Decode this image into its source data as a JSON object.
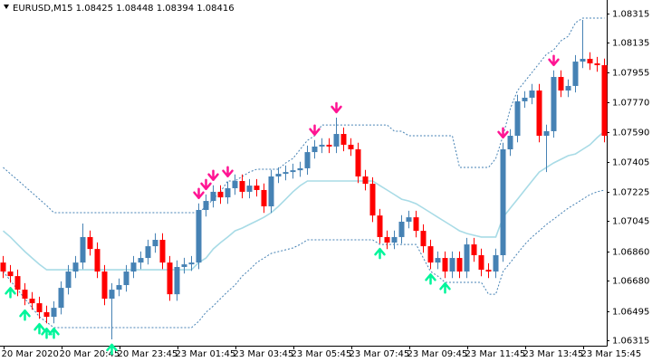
{
  "chart_data": {
    "type": "candlestick",
    "title": "EURUSD,M15  1.08425 1.08448 1.08394 1.08416",
    "categories": [
      "20 Mar 2020",
      null,
      null,
      null,
      null,
      null,
      null,
      null,
      "20 Mar 20:45",
      null,
      null,
      null,
      null,
      null,
      null,
      null,
      "20 Mar 23:45",
      null,
      null,
      null,
      null,
      null,
      null,
      null,
      "23 Mar 01:45",
      null,
      null,
      null,
      null,
      null,
      null,
      null,
      "23 Mar 03:45",
      null,
      null,
      null,
      null,
      null,
      null,
      null,
      "23 Mar 05:45",
      null,
      null,
      null,
      null,
      null,
      null,
      null,
      "23 Mar 07:45",
      null,
      null,
      null,
      null,
      null,
      null,
      null,
      "23 Mar 09:45",
      null,
      null,
      null,
      null,
      null,
      null,
      null,
      "23 Mar 11:45",
      null,
      null,
      null,
      null,
      null,
      null,
      null,
      "23 Mar 13:45",
      null,
      null,
      null,
      null,
      null,
      null,
      null,
      "23 Mar 15:45",
      null,
      null,
      null
    ],
    "open": [
      1.06791,
      1.06736,
      1.06708,
      1.06625,
      1.0657,
      1.06542,
      1.06487,
      1.06459,
      1.06514,
      1.06636,
      1.06736,
      1.06791,
      1.06947,
      1.06874,
      1.06736,
      1.0657,
      1.06625,
      1.06653,
      1.06736,
      1.06791,
      1.06819,
      1.06891,
      1.0693,
      1.06791,
      1.06597,
      1.06764,
      1.0678,
      1.06791,
      1.07113,
      1.07168,
      1.07224,
      1.0719,
      1.07246,
      1.0729,
      1.07224,
      1.07262,
      1.07235,
      1.07135,
      1.07318,
      1.07334,
      1.07345,
      1.07356,
      1.07368,
      1.07467,
      1.07501,
      1.07512,
      1.07501,
      1.07578,
      1.07512,
      1.07484,
      1.07318,
      1.07273,
      1.07079,
      1.06947,
      1.06913,
      1.06947,
      1.07041,
      1.07068,
      1.06985,
      1.06891,
      1.06791,
      1.06819,
      1.06736,
      1.06819,
      1.06736,
      1.06902,
      1.06836,
      1.06747,
      1.06736,
      1.06836,
      1.07484,
      1.07567,
      1.07778,
      1.078,
      1.07844,
      1.07567,
      1.07595,
      1.07927,
      1.07844,
      1.07872,
      1.08021,
      1.08038,
      1.0801,
      1.07999
    ],
    "high": [
      1.06831,
      1.06776,
      1.06748,
      1.06665,
      1.0661,
      1.06582,
      1.06527,
      1.06554,
      1.06676,
      1.06776,
      1.06831,
      1.0703,
      1.06987,
      1.06914,
      1.06776,
      1.06665,
      1.06693,
      1.06776,
      1.06831,
      1.06859,
      1.06931,
      1.0697,
      1.0697,
      1.06831,
      1.06804,
      1.0682,
      1.06831,
      1.07153,
      1.07208,
      1.07264,
      1.07264,
      1.07286,
      1.0733,
      1.0733,
      1.07302,
      1.07302,
      1.07275,
      1.07358,
      1.07374,
      1.07385,
      1.07396,
      1.07408,
      1.07507,
      1.07541,
      1.07552,
      1.07552,
      1.07678,
      1.07618,
      1.07552,
      1.07524,
      1.07358,
      1.07313,
      1.07119,
      1.06987,
      1.06987,
      1.07081,
      1.07108,
      1.07108,
      1.07025,
      1.06931,
      1.06859,
      1.06859,
      1.06859,
      1.06859,
      1.06942,
      1.06942,
      1.06876,
      1.06787,
      1.06876,
      1.07524,
      1.07607,
      1.07818,
      1.0784,
      1.07884,
      1.07884,
      1.07635,
      1.07967,
      1.07967,
      1.07912,
      1.08061,
      1.08276,
      1.08078,
      1.0805,
      1.08039
    ],
    "low": [
      1.06696,
      1.06668,
      1.06585,
      1.0653,
      1.06502,
      1.06447,
      1.06419,
      1.06419,
      1.06474,
      1.06596,
      1.06696,
      1.06751,
      1.06834,
      1.06696,
      1.0653,
      1.06321,
      1.06585,
      1.06613,
      1.06696,
      1.06751,
      1.06779,
      1.06851,
      1.06751,
      1.06557,
      1.06557,
      1.06724,
      1.0674,
      1.06751,
      1.07073,
      1.07128,
      1.0715,
      1.0715,
      1.07206,
      1.07184,
      1.07184,
      1.07195,
      1.07095,
      1.07095,
      1.07278,
      1.07294,
      1.07305,
      1.07316,
      1.07328,
      1.07427,
      1.07461,
      1.07461,
      1.07461,
      1.07472,
      1.07444,
      1.07278,
      1.07233,
      1.07039,
      1.06907,
      1.06873,
      1.06873,
      1.06907,
      1.07001,
      1.06945,
      1.06851,
      1.06751,
      1.06751,
      1.06696,
      1.06696,
      1.06696,
      1.06696,
      1.06796,
      1.06707,
      1.06696,
      1.06696,
      1.06796,
      1.07444,
      1.07527,
      1.07738,
      1.0776,
      1.07527,
      1.07345,
      1.07555,
      1.07804,
      1.07804,
      1.07832,
      1.07981,
      1.0797,
      1.07959,
      1.07527
    ],
    "close": [
      1.06736,
      1.06708,
      1.06625,
      1.0657,
      1.06542,
      1.06487,
      1.06459,
      1.06514,
      1.06636,
      1.06736,
      1.06791,
      1.06947,
      1.06874,
      1.06736,
      1.0657,
      1.06625,
      1.06653,
      1.06736,
      1.06791,
      1.06819,
      1.06891,
      1.0693,
      1.06791,
      1.06597,
      1.06764,
      1.0678,
      1.06791,
      1.07113,
      1.07168,
      1.07224,
      1.0719,
      1.07246,
      1.0729,
      1.07224,
      1.07262,
      1.07235,
      1.07135,
      1.07318,
      1.07334,
      1.07345,
      1.07356,
      1.07368,
      1.07467,
      1.07501,
      1.07512,
      1.07501,
      1.07578,
      1.07512,
      1.07484,
      1.07318,
      1.07273,
      1.07079,
      1.06947,
      1.06913,
      1.06947,
      1.07041,
      1.07068,
      1.06985,
      1.06891,
      1.06791,
      1.06819,
      1.06736,
      1.06819,
      1.06736,
      1.06902,
      1.06836,
      1.06747,
      1.06736,
      1.06836,
      1.07484,
      1.07567,
      1.07778,
      1.078,
      1.07844,
      1.07567,
      1.07595,
      1.07927,
      1.07844,
      1.07872,
      1.08021,
      1.08038,
      1.0801,
      1.07999,
      1.07567
    ],
    "up_color": "#4682b4",
    "down_color": "#ff0000",
    "channel": {
      "upper": [
        1.07373,
        1.07334,
        1.07296,
        1.07257,
        1.07218,
        1.07179,
        1.0714,
        1.07096,
        1.07096,
        1.07096,
        1.07096,
        1.07096,
        1.07096,
        1.07096,
        1.07096,
        1.07096,
        1.07096,
        1.07096,
        1.07096,
        1.07096,
        1.07096,
        1.07096,
        1.07096,
        1.07096,
        1.07096,
        1.07096,
        1.07096,
        1.07096,
        1.07135,
        1.07179,
        1.07224,
        1.0729,
        1.0729,
        1.07318,
        1.07345,
        1.07362,
        1.07362,
        1.07362,
        1.07362,
        1.07401,
        1.07428,
        1.07484,
        1.07539,
        1.07567,
        1.07633,
        1.07633,
        1.07633,
        1.07633,
        1.07633,
        1.07633,
        1.07633,
        1.07633,
        1.07633,
        1.07633,
        1.07595,
        1.07595,
        1.07567,
        1.07567,
        1.07567,
        1.07567,
        1.07567,
        1.07567,
        1.07567,
        1.07373,
        1.07373,
        1.07373,
        1.07373,
        1.07373,
        1.07428,
        1.07567,
        1.07733,
        1.07844,
        1.07899,
        1.07955,
        1.0801,
        1.08066,
        1.08093,
        1.08149,
        1.08176,
        1.08259,
        1.08287,
        1.08287,
        1.08287,
        1.08287
      ],
      "middle": [
        1.06985,
        1.06947,
        1.06902,
        1.06858,
        1.06819,
        1.0678,
        1.06747,
        1.06747,
        1.06747,
        1.06747,
        1.06747,
        1.06747,
        1.06747,
        1.06747,
        1.06747,
        1.06747,
        1.06747,
        1.06747,
        1.06747,
        1.06747,
        1.06747,
        1.06747,
        1.06747,
        1.06747,
        1.06747,
        1.06747,
        1.06747,
        1.06791,
        1.06819,
        1.06874,
        1.06913,
        1.06947,
        1.06985,
        1.07002,
        1.07024,
        1.07046,
        1.07068,
        1.07096,
        1.07135,
        1.07179,
        1.07224,
        1.07262,
        1.0729,
        1.0729,
        1.0729,
        1.0729,
        1.0729,
        1.0729,
        1.0729,
        1.0729,
        1.0729,
        1.0729,
        1.07262,
        1.07235,
        1.07207,
        1.07179,
        1.07168,
        1.07151,
        1.07124,
        1.07096,
        1.07068,
        1.07041,
        1.07013,
        1.06985,
        1.06969,
        1.06958,
        1.06947,
        1.06947,
        1.06947,
        1.07068,
        1.07124,
        1.07179,
        1.07235,
        1.0729,
        1.07345,
        1.07373,
        1.07401,
        1.07423,
        1.07445,
        1.07456,
        1.07484,
        1.07512,
        1.07556,
        1.07595
      ],
      "lower": [
        1.06736,
        1.06681,
        1.06625,
        1.0657,
        1.06514,
        1.06459,
        1.06426,
        1.06393,
        1.06393,
        1.06393,
        1.06393,
        1.06393,
        1.06393,
        1.06393,
        1.06393,
        1.06393,
        1.06393,
        1.06393,
        1.06393,
        1.06393,
        1.06393,
        1.06393,
        1.06393,
        1.06393,
        1.06393,
        1.06393,
        1.06393,
        1.06431,
        1.06487,
        1.06525,
        1.0657,
        1.06614,
        1.06653,
        1.06708,
        1.06747,
        1.06791,
        1.06819,
        1.06847,
        1.06858,
        1.06869,
        1.0688,
        1.06902,
        1.0693,
        1.0693,
        1.0693,
        1.0693,
        1.0693,
        1.0693,
        1.0693,
        1.0693,
        1.0693,
        1.0693,
        1.06902,
        1.06902,
        1.06902,
        1.06902,
        1.06902,
        1.06902,
        1.06819,
        1.06736,
        1.06708,
        1.0667,
        1.0667,
        1.0667,
        1.0667,
        1.0667,
        1.0667,
        1.06597,
        1.06597,
        1.06736,
        1.06791,
        1.06847,
        1.06902,
        1.06947,
        1.06985,
        1.07024,
        1.07057,
        1.07091,
        1.07124,
        1.07151,
        1.07179,
        1.07207,
        1.07224,
        1.07235
      ],
      "band_color": "#4682b4",
      "middle_color": "#a8dbe6"
    },
    "buy_signals": [
      1,
      3,
      5,
      6,
      7,
      15,
      52,
      59,
      61
    ],
    "sell_signals": [
      27,
      28,
      29,
      31,
      43,
      46,
      69,
      76
    ],
    "buy_color": "#00f59a",
    "sell_color": "#ff1493",
    "ylim": [
      1.06282,
      1.08398
    ],
    "yticks": [
      1.08315,
      1.08135,
      1.07955,
      {
        "value": 1.0777,
        "label": "1.07770"
      },
      {
        "value": 1.0759,
        "label": "1.07590"
      },
      1.07405,
      1.07225,
      1.07045,
      {
        "value": 1.0686,
        "label": "1.06860"
      },
      {
        "value": 1.0668,
        "label": "1.06680"
      },
      1.06495,
      1.06315
    ]
  }
}
